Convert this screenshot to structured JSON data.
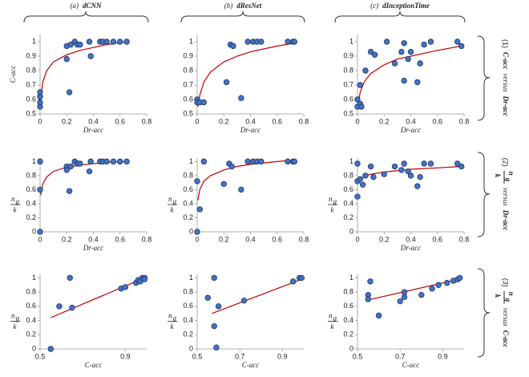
{
  "column_titles": [
    {
      "index": "(a)",
      "name": "dCNN"
    },
    {
      "index": "(b)",
      "name": "dResNet"
    },
    {
      "index": "(c)",
      "name": "dInceptionTime"
    }
  ],
  "row_labels": [
    {
      "index": "(1)",
      "left": "C-acc",
      "middle": "versus",
      "right": "Dr-acc"
    },
    {
      "index": "(2)",
      "left": {
        "num": "n",
        "sub": "g",
        "den": "k"
      },
      "middle": "versus",
      "right": "Dr-acc"
    },
    {
      "index": "(3)",
      "left": {
        "num": "n",
        "sub": "g",
        "den": "k"
      },
      "middle": "versus",
      "right": "C-acc"
    }
  ],
  "chart_data": [
    {
      "type": "scatter",
      "color": "#4472c4",
      "x": [
        0,
        0,
        0,
        0,
        0.2,
        0.2,
        0.22,
        0.23,
        0.26,
        0.28,
        0.3,
        0.37,
        0.38,
        0.45,
        0.47,
        0.5,
        0.55,
        0.6,
        0.65
      ],
      "values": [
        0.55,
        0.58,
        0.62,
        0.65,
        0.88,
        0.97,
        0.65,
        0.98,
        1.0,
        0.98,
        0.98,
        1.0,
        0.9,
        1.0,
        1.0,
        1.0,
        1.0,
        1.0,
        1.0
      ],
      "trend": {
        "color": "#c00000",
        "x": [
          0.005,
          0.02,
          0.05,
          0.1,
          0.2,
          0.3,
          0.4,
          0.5,
          0.65
        ],
        "values": [
          0.6,
          0.72,
          0.8,
          0.86,
          0.91,
          0.94,
          0.96,
          0.98,
          1.0
        ]
      },
      "xlim": [
        0,
        0.8
      ],
      "ylim": [
        0.5,
        1.05
      ],
      "xticks": [
        0,
        0.2,
        0.4,
        0.6,
        0.8
      ],
      "yticks": [
        0.5,
        0.6,
        0.7,
        0.8,
        0.9,
        1
      ],
      "x_label": "Dr-acc",
      "y_label": "C-acc"
    },
    {
      "type": "scatter",
      "color": "#4472c4",
      "x": [
        0,
        0,
        0.02,
        0.05,
        0.22,
        0.25,
        0.27,
        0.33,
        0.38,
        0.42,
        0.45,
        0.48,
        0.68,
        0.72,
        0.73
      ],
      "values": [
        0.6,
        0.58,
        0.58,
        0.58,
        0.72,
        0.98,
        0.97,
        0.61,
        1.0,
        1.0,
        1.0,
        1.0,
        1.0,
        1.0,
        1.0
      ],
      "trend": {
        "color": "#c00000",
        "x": [
          0.005,
          0.02,
          0.05,
          0.1,
          0.2,
          0.3,
          0.4,
          0.5,
          0.6,
          0.73
        ],
        "values": [
          0.55,
          0.63,
          0.72,
          0.79,
          0.86,
          0.9,
          0.93,
          0.95,
          0.97,
          0.99
        ]
      },
      "xlim": [
        0,
        0.8
      ],
      "ylim": [
        0.5,
        1.05
      ],
      "xticks": [
        0,
        0.2,
        0.4,
        0.6,
        0.8
      ],
      "yticks": [
        0.5,
        0.6,
        0.7,
        0.8,
        0.9,
        1
      ],
      "x_label": "Dr-acc"
    },
    {
      "type": "scatter",
      "color": "#4472c4",
      "x": [
        0,
        0,
        0.02,
        0.03,
        0.02,
        0.06,
        0.1,
        0.13,
        0.22,
        0.28,
        0.33,
        0.35,
        0.38,
        0.4,
        0.45,
        0.47,
        0.5,
        0.55,
        0.75,
        0.78,
        0.35
      ],
      "values": [
        0.55,
        0.6,
        0.57,
        0.55,
        0.7,
        0.8,
        0.93,
        0.91,
        1.0,
        0.85,
        0.93,
        0.73,
        0.88,
        0.93,
        0.72,
        0.85,
        0.98,
        1.0,
        1.0,
        0.97,
        0.99
      ],
      "trend": {
        "color": "#c00000",
        "x": [
          0.005,
          0.02,
          0.05,
          0.1,
          0.2,
          0.3,
          0.4,
          0.5,
          0.6,
          0.78
        ],
        "values": [
          0.55,
          0.65,
          0.72,
          0.78,
          0.84,
          0.88,
          0.9,
          0.92,
          0.94,
          0.97
        ]
      },
      "xlim": [
        0,
        0.8
      ],
      "ylim": [
        0.5,
        1.05
      ],
      "xticks": [
        0,
        0.2,
        0.4,
        0.6,
        0.8
      ],
      "yticks": [
        0.5,
        0.6,
        0.7,
        0.8,
        0.9,
        1
      ],
      "x_label": "Dr-acc"
    },
    {
      "type": "scatter",
      "color": "#4472c4",
      "x": [
        0,
        0,
        0,
        0.2,
        0.2,
        0.22,
        0.23,
        0.26,
        0.28,
        0.3,
        0.37,
        0.38,
        0.45,
        0.47,
        0.5,
        0.55,
        0.6,
        0.65
      ],
      "values": [
        1.0,
        0.6,
        0,
        0.93,
        0.88,
        0.58,
        0.93,
        1.0,
        0.97,
        0.97,
        0.86,
        1.0,
        1.0,
        1.0,
        1.0,
        1.0,
        1.0,
        1.0
      ],
      "trend": {
        "color": "#c00000",
        "x": [
          0.005,
          0.02,
          0.05,
          0.1,
          0.2,
          0.3,
          0.4,
          0.5,
          0.65
        ],
        "values": [
          0.52,
          0.68,
          0.78,
          0.86,
          0.92,
          0.95,
          0.97,
          0.99,
          1.0
        ]
      },
      "xlim": [
        0,
        0.8
      ],
      "ylim": [
        0,
        1.05
      ],
      "xticks": [
        0,
        0.2,
        0.4,
        0.6,
        0.8
      ],
      "yticks": [
        0,
        0.2,
        0.4,
        0.6,
        0.8,
        1
      ],
      "x_label": "Dr-acc",
      "y_label": {
        "num": "n",
        "sub": "g",
        "den": "k"
      }
    },
    {
      "type": "scatter",
      "color": "#4472c4",
      "x": [
        0,
        0.02,
        0,
        0.05,
        0.2,
        0.24,
        0.26,
        0.33,
        0.38,
        0.42,
        0.45,
        0.48,
        0.68,
        0.72,
        0.73
      ],
      "values": [
        0.72,
        0.32,
        0,
        1.0,
        0.68,
        0.97,
        0.93,
        0.6,
        1.0,
        1.0,
        1.0,
        1.0,
        1.0,
        1.0,
        1.0
      ],
      "trend": {
        "color": "#c00000",
        "x": [
          0.005,
          0.02,
          0.05,
          0.1,
          0.2,
          0.3,
          0.4,
          0.5,
          0.6,
          0.73
        ],
        "values": [
          0.45,
          0.6,
          0.72,
          0.8,
          0.88,
          0.93,
          0.96,
          0.98,
          1.0,
          1.02
        ]
      },
      "xlim": [
        0,
        0.8
      ],
      "ylim": [
        0,
        1.05
      ],
      "xticks": [
        0,
        0.2,
        0.4,
        0.6,
        0.8
      ],
      "yticks": [
        0,
        0.2,
        0.4,
        0.6,
        0.8,
        1
      ],
      "y_label": {
        "num": "n",
        "sub": "g",
        "den": "k"
      }
    },
    {
      "type": "scatter",
      "color": "#4472c4",
      "x": [
        0,
        0,
        0,
        0.02,
        0.04,
        0.06,
        0.1,
        0.12,
        0.2,
        0.28,
        0.33,
        0.38,
        0.4,
        0.45,
        0.47,
        0.5,
        0.55,
        0.75,
        0.78,
        0.35
      ],
      "values": [
        0.72,
        0.5,
        0.97,
        0.75,
        0.67,
        0.8,
        0.93,
        0.78,
        0.82,
        0.93,
        0.88,
        0.86,
        0.8,
        0.65,
        0.78,
        0.97,
        0.97,
        0.97,
        0.93,
        0.97
      ],
      "trend": {
        "color": "#c00000",
        "x": [
          0.005,
          0.05,
          0.1,
          0.2,
          0.4,
          0.6,
          0.78
        ],
        "values": [
          0.72,
          0.79,
          0.82,
          0.85,
          0.89,
          0.91,
          0.93
        ]
      },
      "xlim": [
        0,
        0.8
      ],
      "ylim": [
        0,
        1.05
      ],
      "xticks": [
        0,
        0.2,
        0.4,
        0.6,
        0.8
      ],
      "yticks": [
        0,
        0.2,
        0.4,
        0.6,
        0.8,
        1
      ],
      "x_label": "Dr-acc",
      "y_label": {
        "num": "n",
        "sub": "g",
        "den": "k"
      }
    },
    {
      "type": "scatter",
      "color": "#4472c4",
      "x": [
        0.55,
        0.59,
        0.64,
        0.65,
        0.88,
        0.9,
        0.95,
        0.96,
        0.97,
        0.98,
        0.99,
        0.99
      ],
      "values": [
        0,
        0.6,
        1.0,
        0.58,
        0.85,
        0.87,
        0.93,
        0.97,
        0.95,
        1.0,
        1.0,
        0.98
      ],
      "trend": {
        "color": "#c00000",
        "x": [
          0.55,
          0.99
        ],
        "values": [
          0.44,
          1.0
        ]
      },
      "xlim": [
        0.5,
        1.0
      ],
      "ylim": [
        0,
        1.05
      ],
      "xticks": [
        0.5,
        0.9
      ],
      "yticks": [
        0,
        0.2,
        0.4,
        0.6,
        0.8,
        1
      ],
      "x_label": "C-acc",
      "y_label": {
        "num": "n",
        "sub": "g",
        "den": "k"
      }
    },
    {
      "type": "scatter",
      "color": "#4472c4",
      "x": [
        0.55,
        0.58,
        0.58,
        0.6,
        0.59,
        0.72,
        0.95,
        0.98,
        0.99
      ],
      "values": [
        0.72,
        1.0,
        0.32,
        0.6,
        0.02,
        0.68,
        0.95,
        1.0,
        1.0
      ],
      "trend": {
        "color": "#c00000",
        "x": [
          0.57,
          0.99
        ],
        "values": [
          0.5,
          0.98
        ]
      },
      "xlim": [
        0.5,
        1.0
      ],
      "ylim": [
        0,
        1.05
      ],
      "xticks": [
        0.5,
        0.7,
        0.9
      ],
      "yticks": [
        0,
        0.2,
        0.4,
        0.6,
        0.8,
        1
      ],
      "x_label": "C-acc",
      "y_label": {
        "num": "n",
        "sub": "g",
        "den": "k"
      }
    },
    {
      "type": "scatter",
      "color": "#4472c4",
      "x": [
        0.55,
        0.55,
        0.56,
        0.6,
        0.7,
        0.72,
        0.8,
        0.85,
        0.88,
        0.92,
        0.95,
        0.97,
        0.98,
        0.72
      ],
      "values": [
        0.76,
        0.7,
        0.95,
        0.47,
        0.67,
        0.8,
        0.76,
        0.85,
        0.9,
        0.93,
        0.96,
        0.98,
        1.0,
        0.73
      ],
      "trend": {
        "color": "#c00000",
        "x": [
          0.55,
          0.99
        ],
        "values": [
          0.69,
          0.99
        ]
      },
      "xlim": [
        0.5,
        1.0
      ],
      "ylim": [
        0,
        1.05
      ],
      "xticks": [
        0.5,
        0.7,
        0.9
      ],
      "yticks": [
        0,
        0.2,
        0.4,
        0.6,
        0.8,
        1
      ],
      "x_label": "C-acc",
      "y_label": {
        "num": "n",
        "sub": "g",
        "den": "k"
      }
    }
  ]
}
